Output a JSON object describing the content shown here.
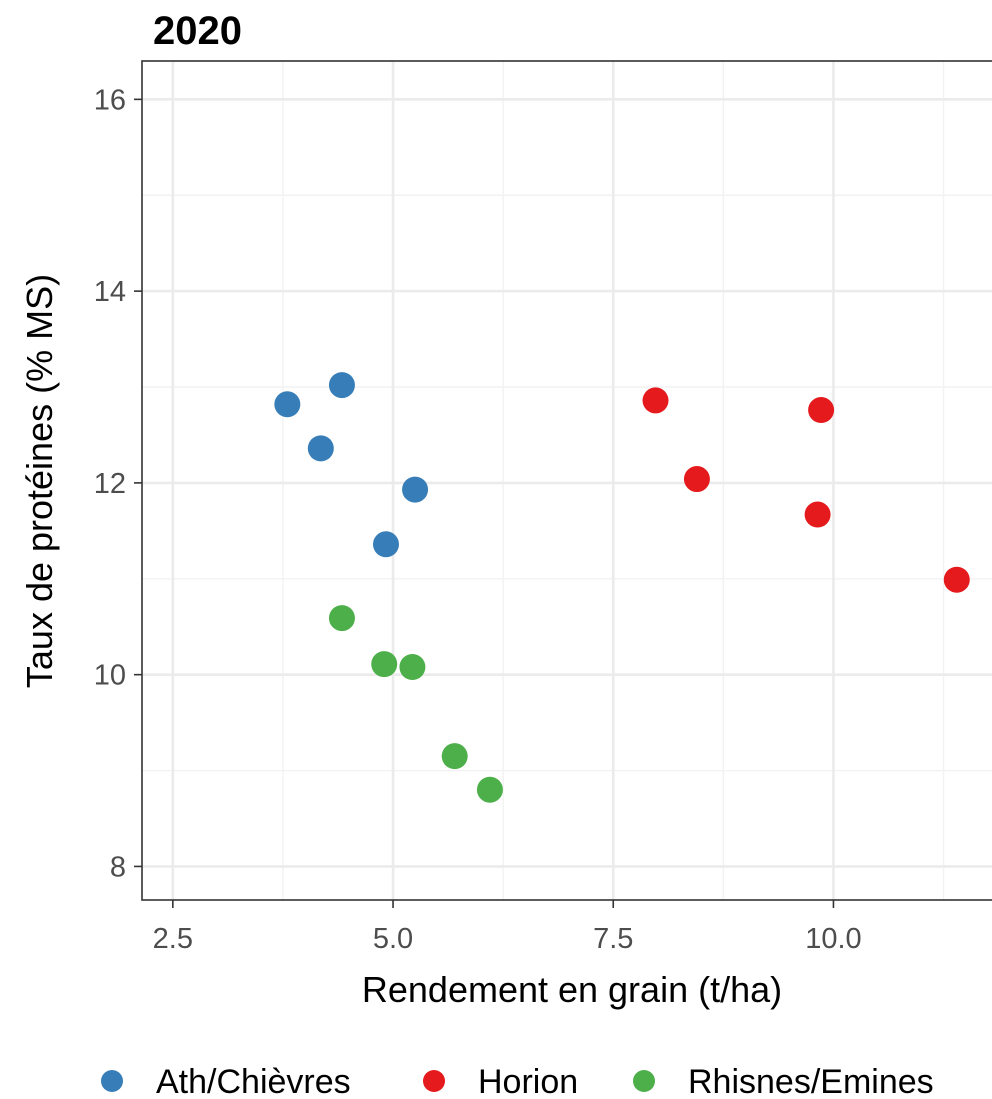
{
  "chart_data": {
    "type": "scatter",
    "title": "2020",
    "xlabel": "Rendement en grain (t/ha)",
    "ylabel": "Taux de protéines (% MS)",
    "xlim": [
      2.15,
      11.8
    ],
    "ylim": [
      7.65,
      16.4
    ],
    "x_ticks": [
      2.5,
      5.0,
      7.5,
      10.0
    ],
    "x_tick_labels": [
      "2.5",
      "5.0",
      "7.5",
      "10.0"
    ],
    "y_ticks": [
      8,
      10,
      12,
      14,
      16
    ],
    "y_tick_labels": [
      "8",
      "10",
      "12",
      "14",
      "16"
    ],
    "grid": true,
    "legend_position": "bottom",
    "series": [
      {
        "name": "Ath/Chièvres",
        "color": "#377eb8",
        "points": [
          {
            "x": 3.8,
            "y": 12.82
          },
          {
            "x": 4.42,
            "y": 13.02
          },
          {
            "x": 4.18,
            "y": 12.36
          },
          {
            "x": 5.25,
            "y": 11.93
          },
          {
            "x": 4.92,
            "y": 11.36
          }
        ]
      },
      {
        "name": "Horion",
        "color": "#e41a1c",
        "points": [
          {
            "x": 7.98,
            "y": 12.86
          },
          {
            "x": 9.86,
            "y": 12.76
          },
          {
            "x": 8.45,
            "y": 12.04
          },
          {
            "x": 9.82,
            "y": 11.67
          },
          {
            "x": 11.4,
            "y": 10.99
          }
        ]
      },
      {
        "name": "Rhisnes/Emines",
        "color": "#4daf4a",
        "points": [
          {
            "x": 4.42,
            "y": 10.59
          },
          {
            "x": 4.9,
            "y": 10.11
          },
          {
            "x": 5.22,
            "y": 10.08
          },
          {
            "x": 5.7,
            "y": 9.15
          },
          {
            "x": 6.1,
            "y": 8.8
          }
        ]
      }
    ]
  }
}
